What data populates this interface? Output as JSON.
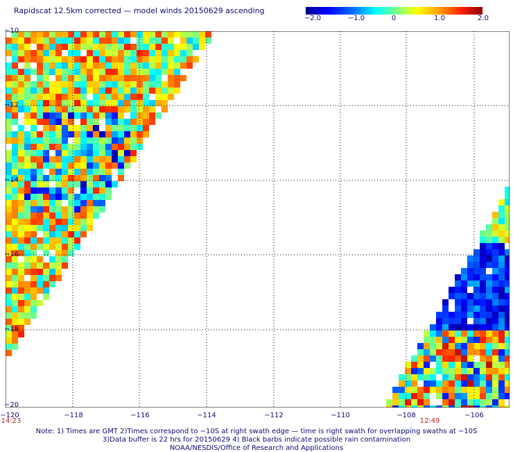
{
  "title": "Rapidscat 12.5km corrected — model winds 20150629 ascending",
  "colorbar": {
    "ticks": [
      "−2.0",
      "−1.0",
      "0",
      "1.0",
      "2.0"
    ],
    "range": [
      -2.0,
      2.0
    ]
  },
  "map": {
    "lon_range": [
      -120,
      -105
    ],
    "lat_range": [
      -20,
      -10
    ],
    "lat_labels": [
      "−10",
      "−12",
      "−14",
      "−16",
      "−18",
      "−20"
    ],
    "lon_labels": [
      "−120",
      "−118",
      "−116",
      "−114",
      "−112",
      "−110",
      "−108",
      "−106"
    ],
    "time_labels": [
      "14:23",
      "12:49"
    ],
    "grid": "dotted"
  },
  "notes": {
    "line1": "Note: 1) Times are GMT 2)Times correspond to −10S at right swath edge — time is right swath for overlapping swaths at −10S",
    "line2": "3)Data buffer is 22 hrs for 20150629 4) Black barbs indicate possible rain contamination",
    "line3": "NOAA/NESDIS/Office of Research and Applications"
  },
  "colors": {
    "text": "#0a0a6e",
    "time": "#b22222",
    "grid": "#000000"
  }
}
